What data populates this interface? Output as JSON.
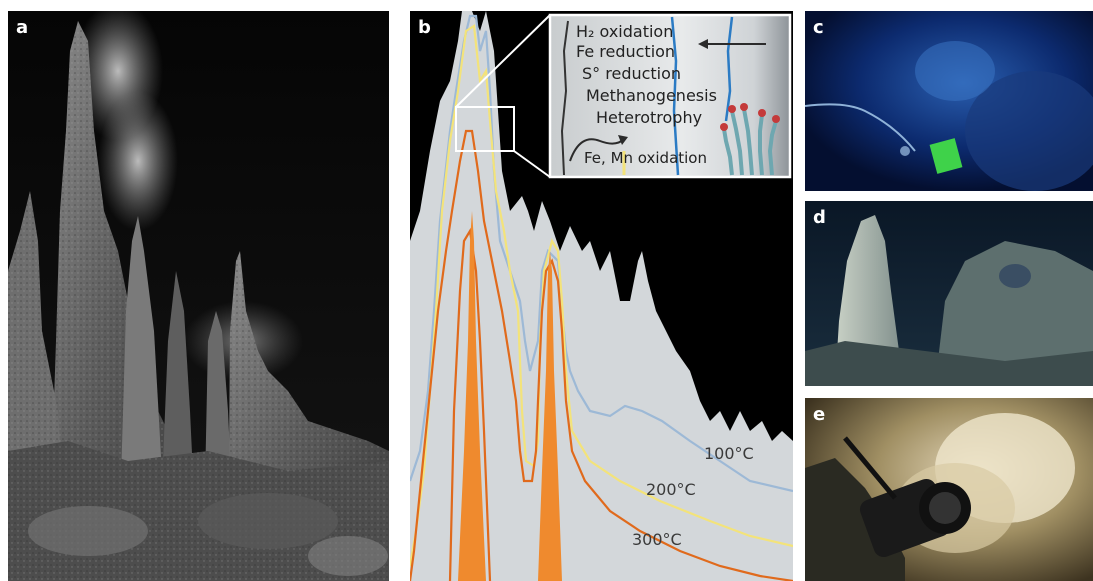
{
  "panels": {
    "a": {
      "letter": "a"
    },
    "b": {
      "letter": "b",
      "inset_labels": [
        "H₂ oxidation",
        "Fe reduction",
        "S° reduction",
        "Methanogenesis",
        "Heterotrophy",
        "Fe, Mn oxidation"
      ],
      "isotherms": [
        "100°C",
        "200°C",
        "300°C"
      ]
    },
    "c": {
      "letter": "c"
    },
    "d": {
      "letter": "d"
    },
    "e": {
      "letter": "e"
    }
  },
  "colors": {
    "isotherm_100": "#9db9d6",
    "isotherm_200": "#f3e37a",
    "isotherm_300": "#e06a1c",
    "fluid_channel": "#ef8a2e",
    "chimney_fill": "#d3d7da",
    "background_dark": "#000000",
    "inset_blue_line": "#2b7bc4"
  }
}
